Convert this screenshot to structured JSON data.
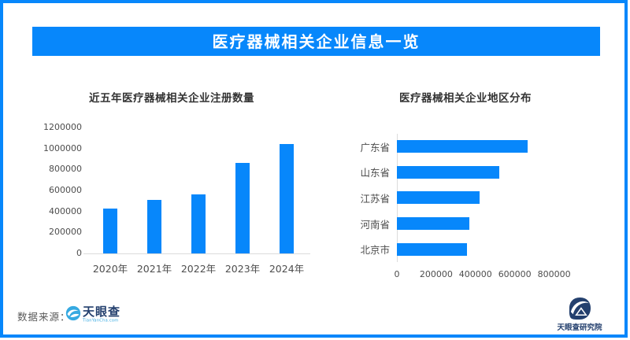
{
  "page": {
    "title": "医疗器械相关企业信息一览",
    "colors": {
      "accent": "#0787FB",
      "axis_line": "#DCDCDC",
      "label_text": "#4D4D4D",
      "logo_blue": "#36A9E1",
      "logo_navy": "#24406E"
    }
  },
  "footer": {
    "source_label": "数据来源：",
    "tianyancha_name": "天眼查",
    "tianyancha_domain": "TianYanCha.com",
    "institute_name": "天眼查研究院"
  },
  "icons": {
    "tianyancha_logo": "eye-swoosh-circle",
    "institute_logo": "navy-emblem-mountain"
  },
  "chart_data": [
    {
      "type": "bar",
      "title": "近五年医疗器械相关企业注册数量",
      "categories": [
        "2020年",
        "2021年",
        "2022年",
        "2023年",
        "2024年"
      ],
      "values": [
        430000,
        510000,
        565000,
        865000,
        1045000
      ],
      "xlabel": "",
      "ylabel": "",
      "ylim": [
        0,
        1200000
      ],
      "y_ticks": [
        0,
        200000,
        400000,
        600000,
        800000,
        1000000,
        1200000
      ],
      "grid": false,
      "legend": "none",
      "bar_color": "#0787FB"
    },
    {
      "type": "bar-horizontal",
      "title": "医疗器械相关企业地区分布",
      "categories": [
        "广东省",
        "山东省",
        "江苏省",
        "河南省",
        "北京市"
      ],
      "values": [
        665000,
        520000,
        420000,
        370000,
        355000
      ],
      "xlabel": "",
      "ylabel": "",
      "xlim": [
        0,
        1000000
      ],
      "x_ticks": [
        0,
        200000,
        400000,
        600000,
        800000
      ],
      "grid": false,
      "legend": "none",
      "bar_color": "#0787FB"
    }
  ]
}
